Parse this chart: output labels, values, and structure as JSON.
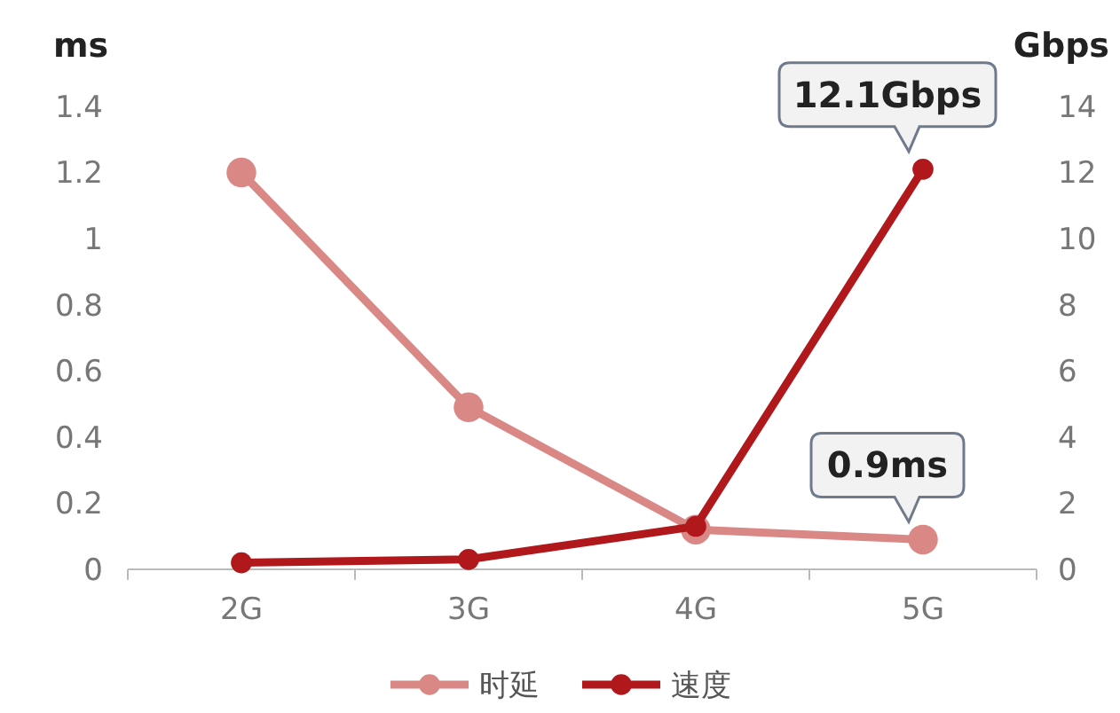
{
  "chart_data": {
    "type": "line",
    "ylabel": "ms",
    "y2label": "Gbps",
    "categories": [
      "2G",
      "3G",
      "4G",
      "5G"
    ],
    "series": [
      {
        "name": "时延",
        "color": "#d98886",
        "values": [
          1.2,
          0.49,
          0.12,
          0.09
        ]
      },
      {
        "name": "速度",
        "color": "#b0181c",
        "axis": "y2",
        "values": [
          0.2,
          0.3,
          1.3,
          12.1
        ]
      }
    ],
    "ylim": [
      0,
      1.4
    ],
    "yticks": [
      0,
      0.2,
      0.4,
      0.6,
      0.8,
      1,
      1.2,
      1.4
    ],
    "y2lim": [
      0,
      14
    ],
    "y2ticks": [
      0,
      2,
      4,
      6,
      8,
      10,
      12,
      14
    ],
    "annotations": [
      "0.9ms",
      "12.1Gbps"
    ],
    "marker": "circle",
    "legend": "bottom",
    "grid": false
  }
}
